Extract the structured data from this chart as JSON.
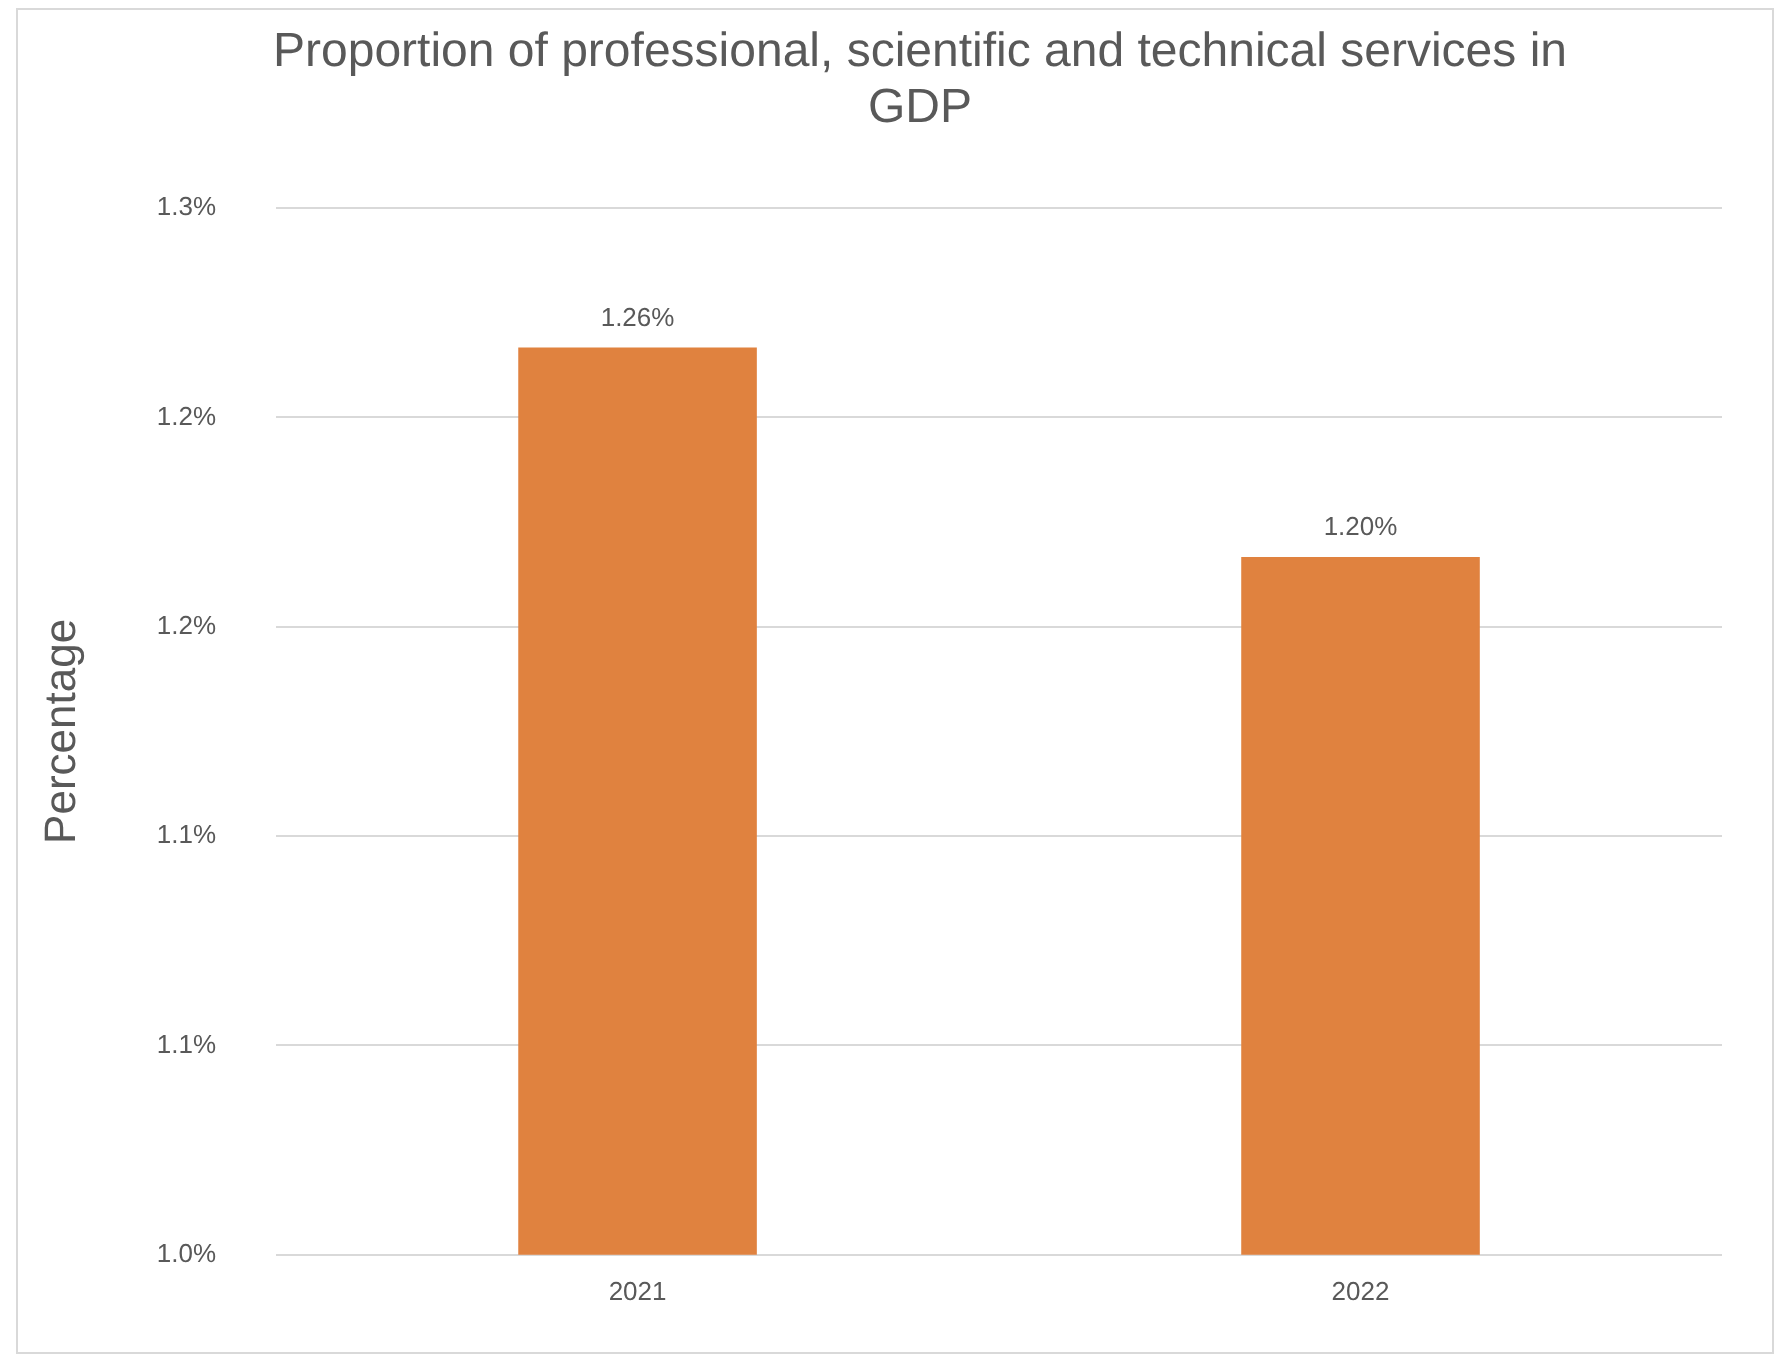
{
  "chart_data": {
    "type": "bar",
    "title": "Proportion of professional, scientific and technical services in GDP",
    "ylabel": "Percentage",
    "categories": [
      "2021",
      "2022"
    ],
    "values": [
      1.26,
      1.2
    ],
    "color": "#e0823f",
    "value_labels": [
      "1.26%",
      "1.20%"
    ],
    "ylim": [
      1.0,
      1.3
    ],
    "yticks": [
      {
        "value": 1.0,
        "label": "1.0%"
      },
      {
        "value": 1.06,
        "label": "1.1%"
      },
      {
        "value": 1.12,
        "label": "1.1%"
      },
      {
        "value": 1.18,
        "label": "1.2%"
      },
      {
        "value": 1.24,
        "label": "1.2%"
      },
      {
        "value": 1.3,
        "label": "1.3%"
      }
    ],
    "grid": "y",
    "legend": false
  }
}
